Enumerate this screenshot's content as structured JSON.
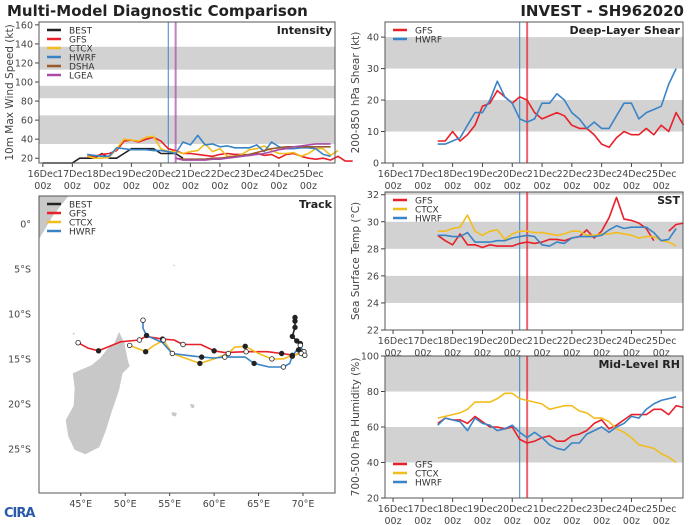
{
  "header": {
    "title": "Multi-Model Diagnostic Comparison",
    "storm": "INVEST - SH962020"
  },
  "logo_text": "CIRA",
  "colors": {
    "BEST": "#222222",
    "GFS": "#e8202a",
    "CTCX": "#f2bd1e",
    "HWRF": "#3a84c6",
    "DSHA": "#9b5a2c",
    "LGEA": "#a84ca8",
    "band": "#d2d2d2",
    "land": "#c8c8c8"
  },
  "time_axis": {
    "labels": [
      [
        "16Dec",
        "00z"
      ],
      [
        "17Dec",
        "00z"
      ],
      [
        "18Dec",
        "00z"
      ],
      [
        "19Dec",
        "00z"
      ],
      [
        "20Dec",
        "00z"
      ],
      [
        "21Dec",
        "00z"
      ],
      [
        "22Dec",
        "00z"
      ],
      [
        "23Dec",
        "00z"
      ],
      [
        "24Dec",
        "00z"
      ],
      [
        "25Dec",
        "00z"
      ]
    ],
    "vlines": [
      {
        "model": "HWRF",
        "day": 4.25
      },
      {
        "model": "LGEA",
        "day": 4.5
      }
    ]
  },
  "chart_data": [
    {
      "id": "intensity",
      "type": "line",
      "title": "Intensity",
      "ylabel": "10m Max Wind Speed (kt)",
      "ylim": [
        15,
        163
      ],
      "xlim": [
        -0.13,
        9.9
      ],
      "yticks": [
        20,
        40,
        60,
        80,
        100,
        120,
        140,
        160
      ],
      "bands": [
        [
          35,
          65
        ],
        [
          83,
          96
        ],
        [
          113,
          137
        ]
      ],
      "legend": "top-left",
      "step": 0.25,
      "series": [
        {
          "name": "BEST",
          "start": 0,
          "values": [
            15,
            15,
            15,
            15,
            15,
            20,
            20,
            20,
            25,
            20,
            20,
            25,
            30,
            30,
            30,
            30,
            25,
            25,
            25,
            20
          ]
        },
        {
          "name": "GFS",
          "start": 1.5,
          "values": [
            22,
            22,
            24,
            25,
            28,
            38,
            39,
            37,
            40,
            42,
            38,
            30,
            28,
            25,
            25,
            24,
            23,
            22,
            24,
            25,
            24,
            24,
            23,
            25,
            23,
            24,
            20,
            24,
            25,
            22,
            20,
            19,
            20,
            18,
            22,
            17,
            17
          ]
        },
        {
          "name": "CTCX",
          "start": 1.5,
          "values": [
            22,
            20,
            20,
            21,
            30,
            40,
            39,
            38,
            42,
            43,
            30,
            27,
            27,
            25,
            27,
            28,
            35,
            27,
            30,
            22,
            22,
            24,
            29,
            30,
            33,
            28,
            25,
            25,
            26,
            22,
            25,
            30,
            30,
            23,
            28
          ]
        },
        {
          "name": "HWRF",
          "start": 1.5,
          "values": [
            24,
            23,
            22,
            22,
            31,
            30,
            29,
            29,
            29,
            28,
            28,
            27,
            25,
            37,
            34,
            44,
            34,
            35,
            32,
            33,
            31,
            31,
            31,
            34,
            27,
            37,
            32,
            30,
            30,
            31,
            31,
            30,
            24,
            22
          ]
        },
        {
          "name": "DSHA",
          "start": 4.5,
          "values": [
            20,
            19,
            19,
            19,
            19,
            20,
            20,
            21,
            22,
            23,
            24,
            26,
            28,
            30,
            31,
            32,
            32,
            32,
            32,
            32,
            32,
            32
          ]
        },
        {
          "name": "LGEA",
          "start": 4.5,
          "values": [
            20,
            18,
            18,
            18,
            18,
            19,
            19,
            20,
            21,
            22,
            23,
            24,
            25,
            27,
            29,
            30,
            32,
            33,
            34,
            35,
            35,
            35
          ]
        }
      ]
    },
    {
      "id": "shear",
      "type": "line",
      "title": "Deep-Layer Shear",
      "ylabel": "200-850 hPa Shear (kt)",
      "ylim": [
        0,
        44.8
      ],
      "xlim": [
        -0.27,
        9.73
      ],
      "yticks": [
        0,
        10,
        20,
        30,
        40
      ],
      "bands": [
        [
          10,
          20
        ],
        [
          30,
          40
        ]
      ],
      "legend": "top-left",
      "step": 0.25,
      "series": [
        {
          "name": "GFS",
          "start": 1.5,
          "values": [
            7,
            7,
            10,
            7,
            9,
            12,
            18,
            19,
            23,
            21,
            19,
            21,
            20,
            16,
            14,
            15,
            16,
            15,
            12,
            11,
            11,
            9,
            6,
            5,
            8,
            10,
            9,
            9,
            11,
            9,
            12,
            10,
            16,
            12
          ]
        },
        {
          "name": "HWRF",
          "start": 1.5,
          "values": [
            6,
            6,
            7,
            8,
            12,
            16,
            16,
            20,
            26,
            21,
            19,
            14,
            13,
            14,
            19,
            19,
            22,
            20,
            16,
            14,
            11,
            13,
            11,
            11,
            15,
            19,
            19,
            14,
            16,
            17,
            18,
            25,
            30
          ]
        }
      ]
    },
    {
      "id": "sst",
      "type": "line",
      "title": "SST",
      "ylabel": "Sea Surface Temp (°C)",
      "ylim": [
        22,
        32.2
      ],
      "xlim": [
        -0.27,
        9.73
      ],
      "yticks": [
        22,
        24,
        26,
        28,
        30,
        32
      ],
      "bands": [
        [
          24,
          26
        ],
        [
          28,
          30
        ],
        [
          32,
          33
        ]
      ],
      "legend": "top-left",
      "step": 0.25,
      "series": [
        {
          "name": "GFS",
          "start": 1.5,
          "values": [
            29,
            28.6,
            28.3,
            29.1,
            28.3,
            28.3,
            28.1,
            28.3,
            28.2,
            28.2,
            28.2,
            28.4,
            28.5,
            28.4,
            28.5,
            28.7,
            28.7,
            28.6,
            28.8,
            28.9,
            29.4,
            28.8,
            29.3,
            30.3,
            31.8,
            30.2,
            30.1,
            29.9,
            29.5,
            28.6,
            null,
            29.3,
            29.8,
            29.9
          ]
        },
        {
          "name": "CTCX",
          "start": 1.5,
          "values": [
            29.3,
            29.3,
            29.5,
            29.6,
            30.5,
            29.3,
            29,
            29.3,
            29.4,
            28.7,
            29.1,
            29.3,
            29.3,
            29.2,
            29.2,
            29.1,
            29,
            29.1,
            29.3,
            29.3,
            29,
            29,
            29.1,
            29.1,
            29.2,
            29.1,
            29,
            28.8,
            28.9,
            28.9,
            28.6,
            28.5,
            28.2
          ]
        },
        {
          "name": "HWRF",
          "start": 1.5,
          "values": [
            29,
            29,
            28.9,
            28.9,
            29.2,
            28.5,
            28.5,
            28.5,
            28.6,
            28.6,
            28.8,
            28.9,
            29,
            28.9,
            28.3,
            28.2,
            28.5,
            28.4,
            28.8,
            28.9,
            28.9,
            28.9,
            29,
            29.4,
            29.7,
            29.5,
            29.6,
            29.6,
            29.6,
            29.2,
            28.6,
            28.7,
            29.5
          ]
        }
      ]
    },
    {
      "id": "rh",
      "type": "line",
      "title": "Mid-Level RH",
      "ylabel": "700-500 hPa Humidity (%)",
      "ylim": [
        20,
        100
      ],
      "xlim": [
        -0.27,
        9.73
      ],
      "yticks": [
        20,
        40,
        60,
        80,
        100
      ],
      "bands": [
        [
          40,
          60
        ],
        [
          80,
          100
        ]
      ],
      "legend": "bottom-left",
      "step": 0.25,
      "series": [
        {
          "name": "GFS",
          "start": 1.5,
          "values": [
            62,
            65,
            64,
            64,
            62,
            66,
            63,
            60,
            60,
            59,
            60,
            53,
            51,
            52,
            54,
            55,
            52,
            52,
            55,
            56,
            58,
            62,
            64,
            59,
            61,
            64,
            67,
            67,
            67,
            70,
            70,
            67,
            72,
            71
          ]
        },
        {
          "name": "CTCX",
          "start": 1.5,
          "values": [
            65,
            66,
            67,
            68,
            70,
            74,
            74,
            74,
            76,
            79,
            79,
            76,
            75,
            74,
            73,
            70,
            71,
            72,
            72,
            69,
            68,
            65,
            65,
            63,
            59,
            57,
            54,
            50,
            49,
            48,
            45,
            43,
            40
          ]
        },
        {
          "name": "HWRF",
          "start": 1.5,
          "values": [
            61,
            65,
            64,
            63,
            58,
            65,
            62,
            61,
            58,
            59,
            61,
            57,
            54,
            57,
            54,
            50,
            48,
            47,
            51,
            51,
            56,
            58,
            60,
            57,
            60,
            62,
            66,
            65,
            70,
            73,
            75,
            76,
            77
          ]
        }
      ]
    },
    {
      "id": "track",
      "type": "map",
      "title": "Track",
      "lonlim": [
        40.3,
        73.6
      ],
      "latlim": [
        -29.9,
        3.1
      ],
      "xticks": [
        {
          "v": 45,
          "l": "45°E"
        },
        {
          "v": 50,
          "l": "50°E"
        },
        {
          "v": 55,
          "l": "55°E"
        },
        {
          "v": 60,
          "l": "60°E"
        },
        {
          "v": 65,
          "l": "65°E"
        },
        {
          "v": 70,
          "l": "70°E"
        }
      ],
      "yticks": [
        {
          "v": 0,
          "l": "0°"
        },
        {
          "v": -5,
          "l": "5°S"
        },
        {
          "v": -10,
          "l": "10°S"
        },
        {
          "v": -15,
          "l": "15°S"
        },
        {
          "v": -20,
          "l": "20°S"
        },
        {
          "v": -25,
          "l": "25°S"
        }
      ],
      "legend": "top-left",
      "tracks": [
        {
          "name": "BEST",
          "points": [
            [
              69.1,
              -10.4
            ],
            [
              69.1,
              -10.8
            ],
            [
              69.1,
              -11.5
            ],
            [
              68.8,
              -12.5
            ],
            [
              69.3,
              -13.0
            ],
            [
              69.7,
              -13.3
            ],
            [
              69.5,
              -14.0
            ],
            [
              70.1,
              -14.2
            ]
          ]
        },
        {
          "name": "GFS",
          "points": [
            [
              44.7,
              -13.2
            ],
            [
              45.8,
              -13.8
            ],
            [
              47,
              -14.1
            ],
            [
              49.5,
              -13.1
            ],
            [
              51.6,
              -12.9
            ],
            [
              52.3,
              -12.5
            ],
            [
              54.2,
              -12.8
            ],
            [
              55.5,
              -12.9
            ],
            [
              56.5,
              -13.4
            ],
            [
              58.5,
              -13.4
            ],
            [
              60,
              -14.1
            ],
            [
              61.2,
              -14.3
            ],
            [
              63.6,
              -14.2
            ],
            [
              66,
              -14.2
            ],
            [
              67.6,
              -14.4
            ],
            [
              69,
              -14.6
            ],
            [
              70.1,
              -14.2
            ]
          ]
        },
        {
          "name": "CTCX",
          "points": [
            [
              50.5,
              -13.5
            ],
            [
              51.8,
              -14
            ],
            [
              52.3,
              -14.2
            ],
            [
              53.1,
              -13.6
            ],
            [
              54.3,
              -12.9
            ],
            [
              55.3,
              -14.4
            ],
            [
              58.4,
              -15.5
            ],
            [
              60,
              -15
            ],
            [
              61.6,
              -14.4
            ],
            [
              62.3,
              -13.7
            ],
            [
              63.5,
              -13.6
            ],
            [
              65,
              -14.4
            ],
            [
              66.5,
              -15
            ],
            [
              67.8,
              -15
            ],
            [
              68.8,
              -14.6
            ],
            [
              69.8,
              -14.4
            ]
          ]
        },
        {
          "name": "HWRF",
          "points": [
            [
              52,
              -10.7
            ],
            [
              52,
              -11.6
            ],
            [
              52.4,
              -12.4
            ],
            [
              54.2,
              -13.2
            ],
            [
              55.3,
              -14.4
            ],
            [
              56.9,
              -14.6
            ],
            [
              58.6,
              -14.8
            ],
            [
              60,
              -14.9
            ],
            [
              61.2,
              -14.8
            ],
            [
              63.5,
              -14.8
            ],
            [
              64.5,
              -15.5
            ],
            [
              66.2,
              -15.9
            ],
            [
              67.8,
              -15.9
            ],
            [
              68.5,
              -15.5
            ],
            [
              68.8,
              -14.7
            ],
            [
              69.3,
              -14
            ],
            [
              69.7,
              -13.5
            ],
            [
              70.2,
              -14.6
            ]
          ]
        }
      ]
    }
  ]
}
